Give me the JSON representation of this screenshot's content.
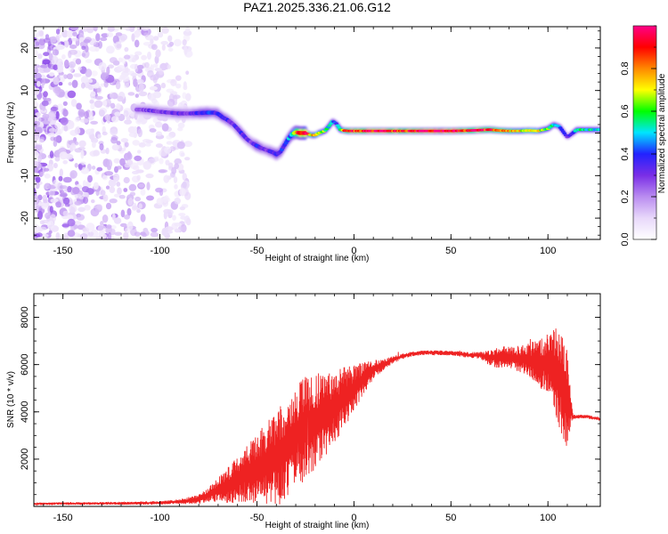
{
  "title": "PAZ1.2025.336.21.06.G12",
  "chart_data": [
    {
      "type": "heatmap",
      "name": "spectrogram",
      "xlabel": "Height of straight line (km)",
      "ylabel": "Frequency (Hz)",
      "xlim": [
        -165,
        127
      ],
      "ylim": [
        -25,
        25
      ],
      "xticks": [
        -150,
        -100,
        -50,
        0,
        50,
        100
      ],
      "yticks": [
        -20,
        -10,
        0,
        10,
        20
      ],
      "colorbar": {
        "label": "Normalized spectral amplitude",
        "range": [
          0.0,
          1.0
        ],
        "ticks": [
          0.0,
          0.2,
          0.4,
          0.6,
          0.8
        ],
        "colormap": [
          "#ffffff",
          "#e8d8fa",
          "#b98cf0",
          "#7a2ee6",
          "#2222ff",
          "#00e5ff",
          "#00ff00",
          "#ffff00",
          "#ff8800",
          "#ff0000",
          "#ff0088"
        ]
      },
      "ridge": {
        "x": [
          -110,
          -105,
          -100,
          -95,
          -90,
          -85,
          -80,
          -75,
          -72,
          -70,
          -68,
          -65,
          -62,
          -60,
          -57,
          -55,
          -52,
          -50,
          -48,
          -45,
          -42,
          -40,
          -38,
          -36,
          -34,
          -32,
          -30,
          -28,
          -25,
          -22,
          -20,
          -18,
          -15,
          -13,
          -11,
          -9,
          -7,
          -5,
          -3,
          0,
          5,
          10,
          15,
          20,
          25,
          30,
          40,
          50,
          60,
          70,
          75,
          80,
          85,
          90,
          95,
          100,
          103,
          106,
          110,
          115,
          120,
          127
        ],
        "freq": [
          5.5,
          5.3,
          5.0,
          4.8,
          4.6,
          4.6,
          4.7,
          4.8,
          4.8,
          4.5,
          3.8,
          3.0,
          2.0,
          1.0,
          -0.5,
          -1.5,
          -2.5,
          -3.0,
          -3.5,
          -4.0,
          -4.5,
          -5.0,
          -4.5,
          -3.0,
          -1.5,
          -0.3,
          0.2,
          0.0,
          0.0,
          -0.5,
          -0.5,
          0.0,
          0.5,
          1.5,
          2.8,
          2.2,
          0.8,
          0.6,
          0.5,
          0.5,
          0.5,
          0.5,
          0.5,
          0.5,
          0.5,
          0.5,
          0.5,
          0.5,
          0.6,
          0.8,
          0.6,
          0.5,
          0.5,
          0.6,
          0.5,
          1.0,
          2.0,
          1.5,
          -1.0,
          0.8,
          0.8,
          0.8
        ],
        "amplitude": [
          0.25,
          0.3,
          0.28,
          0.3,
          0.32,
          0.3,
          0.35,
          0.4,
          0.35,
          0.4,
          0.35,
          0.35,
          0.3,
          0.35,
          0.35,
          0.3,
          0.3,
          0.4,
          0.35,
          0.3,
          0.35,
          0.4,
          0.35,
          0.4,
          0.45,
          0.5,
          0.75,
          0.9,
          1.0,
          0.7,
          0.75,
          0.7,
          0.6,
          0.5,
          0.45,
          0.4,
          0.6,
          0.8,
          0.9,
          0.9,
          0.9,
          0.95,
          0.95,
          0.9,
          0.9,
          0.95,
          1.0,
          1.0,
          0.9,
          0.9,
          0.8,
          0.75,
          0.7,
          0.7,
          0.7,
          0.6,
          0.5,
          0.45,
          0.3,
          0.5,
          0.55,
          0.5
        ]
      },
      "noise_region": {
        "xlim": [
          -165,
          -85
        ],
        "freq_lim": [
          -25,
          25
        ],
        "amplitude": [
          0.05,
          0.3
        ]
      }
    },
    {
      "type": "line",
      "name": "snr",
      "xlabel": "Height of straight line (km)",
      "ylabel": "SNR (10 * v/v)",
      "xlim": [
        -165,
        127
      ],
      "ylim": [
        0,
        9000
      ],
      "xticks": [
        -150,
        -100,
        -50,
        0,
        50,
        100
      ],
      "yticks": [
        2000,
        4000,
        6000,
        8000
      ],
      "color": "#ee2222",
      "envelope": {
        "x": [
          -165,
          -150,
          -120,
          -100,
          -90,
          -80,
          -75,
          -70,
          -65,
          -60,
          -55,
          -50,
          -45,
          -40,
          -35,
          -30,
          -25,
          -20,
          -15,
          -10,
          -5,
          0,
          5,
          10,
          15,
          20,
          25,
          30,
          35,
          40,
          45,
          50,
          55,
          60,
          65,
          70,
          75,
          80,
          85,
          90,
          95,
          100,
          102,
          105,
          108,
          110,
          113,
          115,
          120,
          127
        ],
        "base": [
          110,
          120,
          130,
          150,
          200,
          300,
          500,
          700,
          900,
          1100,
          1400,
          1600,
          1800,
          2100,
          2500,
          2900,
          3300,
          3600,
          3900,
          4200,
          4600,
          5000,
          5400,
          5800,
          6000,
          6200,
          6350,
          6450,
          6500,
          6500,
          6500,
          6480,
          6450,
          6400,
          6400,
          6300,
          6300,
          6300,
          6250,
          6200,
          6100,
          6000,
          6200,
          5500,
          5000,
          4500,
          3800,
          3800,
          3800,
          3700
        ],
        "spread": [
          50,
          50,
          60,
          80,
          100,
          200,
          300,
          500,
          800,
          1000,
          1200,
          1500,
          1800,
          2000,
          2200,
          2200,
          2200,
          2000,
          1800,
          1500,
          1300,
          1000,
          700,
          400,
          250,
          150,
          120,
          100,
          100,
          100,
          100,
          100,
          120,
          120,
          150,
          350,
          500,
          450,
          550,
          700,
          1000,
          1300,
          1500,
          2000,
          2500,
          2000,
          100,
          80,
          80,
          80
        ]
      }
    }
  ]
}
